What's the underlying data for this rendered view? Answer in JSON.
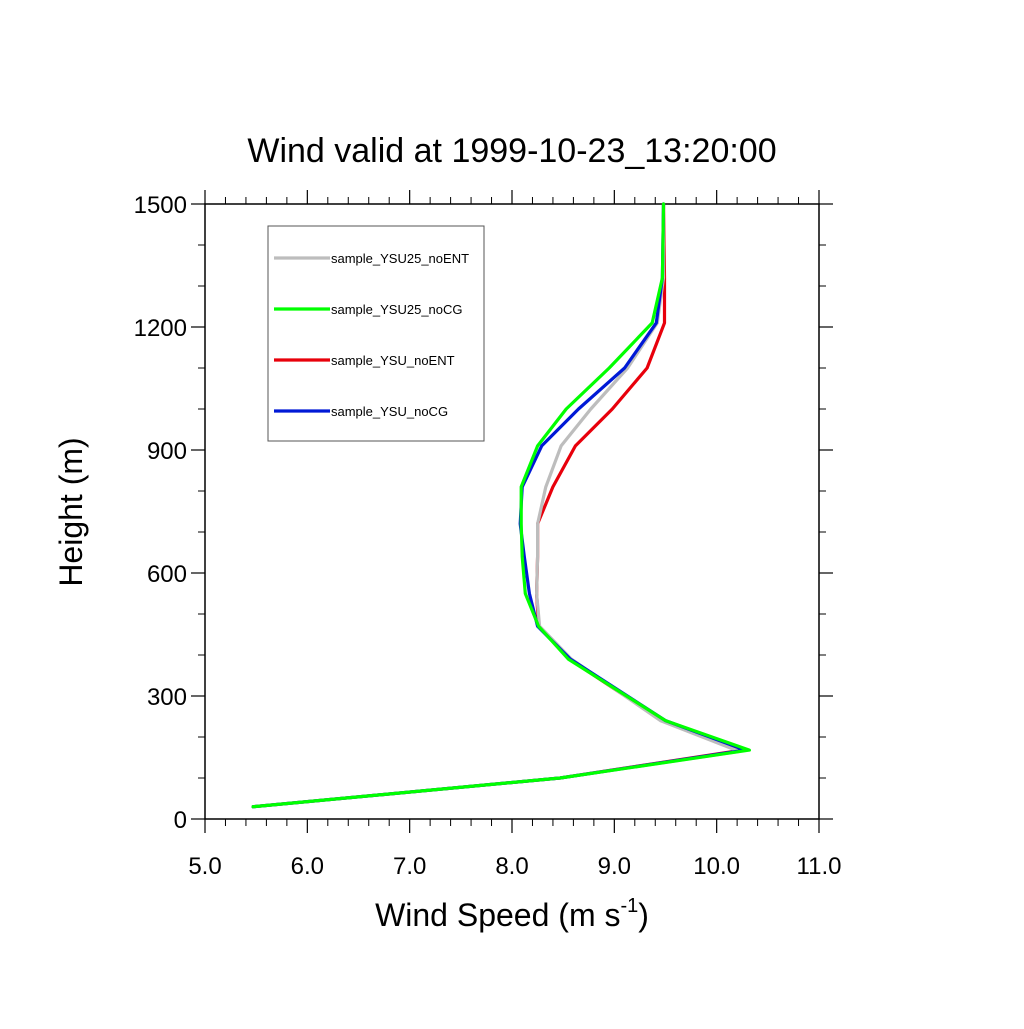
{
  "chart_data": {
    "type": "line",
    "title": "Wind valid at 1999-10-23_13:20:00",
    "xlabel": "Wind Speed (m s",
    "xlabel_superscript": "-1",
    "xlabel_suffix": ")",
    "ylabel": "Height (m)",
    "xlim": [
      5.0,
      11.0
    ],
    "ylim": [
      0,
      1500
    ],
    "xticks": [
      "5.0",
      "6.0",
      "7.0",
      "8.0",
      "9.0",
      "10.0",
      "11.0"
    ],
    "yticks": [
      "0",
      "300",
      "600",
      "900",
      "1200",
      "1500"
    ],
    "grid": false,
    "legend_position": "top-left",
    "series": [
      {
        "name": "sample_YSU25_noENT",
        "color": "#bdbdbd",
        "x": [
          5.47,
          8.47,
          10.22,
          9.45,
          8.58,
          8.27,
          8.24,
          8.25,
          8.25,
          8.33,
          8.48,
          8.77,
          9.13,
          9.42,
          9.48,
          9.48
        ],
        "y": [
          30,
          100,
          165,
          240,
          390,
          470,
          550,
          640,
          720,
          810,
          910,
          1000,
          1100,
          1210,
          1320,
          1500
        ]
      },
      {
        "name": "sample_YSU25_noCG",
        "color": "#00ff00",
        "x": [
          5.47,
          8.47,
          10.32,
          9.5,
          8.55,
          8.26,
          8.13,
          8.1,
          8.09,
          8.09,
          8.25,
          8.53,
          8.95,
          9.37,
          9.47,
          9.48
        ],
        "y": [
          30,
          100,
          168,
          240,
          390,
          470,
          550,
          640,
          720,
          810,
          910,
          1000,
          1100,
          1210,
          1320,
          1500
        ]
      },
      {
        "name": "sample_YSU_noENT",
        "color": "#e8000b",
        "x": [
          5.47,
          8.47,
          10.25,
          9.47,
          8.56,
          8.26,
          8.24,
          8.25,
          8.25,
          8.4,
          8.62,
          8.98,
          9.32,
          9.49,
          9.49,
          9.48
        ],
        "y": [
          30,
          100,
          168,
          240,
          390,
          470,
          550,
          640,
          720,
          810,
          910,
          1000,
          1100,
          1210,
          1320,
          1500
        ]
      },
      {
        "name": "sample_YSU_noCG",
        "color": "#0019d6",
        "x": [
          5.47,
          8.47,
          10.28,
          9.5,
          8.57,
          8.25,
          8.17,
          8.12,
          8.08,
          8.1,
          8.29,
          8.65,
          9.1,
          9.41,
          9.47,
          9.48
        ],
        "y": [
          30,
          100,
          168,
          240,
          390,
          470,
          550,
          640,
          720,
          810,
          910,
          1000,
          1100,
          1210,
          1320,
          1500
        ]
      }
    ]
  }
}
